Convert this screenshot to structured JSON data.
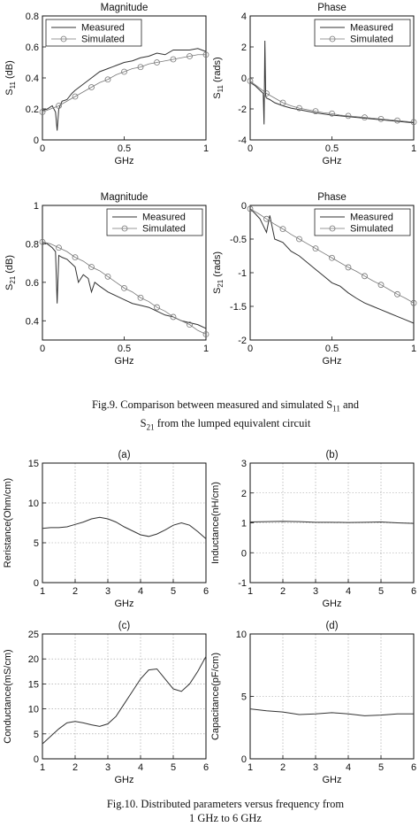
{
  "captions": {
    "fig9_line1": "Fig.9. Comparison between measured and simulated S",
    "fig9_sub1": "11",
    "fig9_mid": " and",
    "fig9_line2_pre": "S",
    "fig9_sub2": "21",
    "fig9_line2_post": " from the lumped equivalent circuit",
    "fig10_line1": "Fig.10. Distributed parameters versus frequency from",
    "fig10_line2": "1 GHz to 6 GHz"
  },
  "colors": {
    "line": "#333333",
    "grid": "#9a9a9a",
    "simulated": "#777777"
  },
  "chart_data": [
    {
      "id": "s11-magnitude",
      "type": "line",
      "title": "Magnitude",
      "xlabel": "GHz",
      "ylabel": "S11 (dB)",
      "ylabel_main": "S",
      "ylabel_sub": "11",
      "ylabel_unit": " (dB)",
      "xlim": [
        0,
        1
      ],
      "ylim": [
        0,
        0.8
      ],
      "xticks": [
        0,
        0.5,
        1
      ],
      "yticks": [
        0,
        0.2,
        0.4,
        0.6,
        0.8
      ],
      "xticklabels": [
        "0",
        "0.5",
        "1"
      ],
      "yticklabels": [
        "0",
        "0.2",
        "0.4",
        "0.6",
        "0.8"
      ],
      "legend": [
        "Measured",
        "Simulated"
      ],
      "legend_position": "top-left",
      "grid": false,
      "series": [
        {
          "name": "Measured",
          "style": "solid",
          "x": [
            0,
            0.03,
            0.06,
            0.08,
            0.09,
            0.1,
            0.12,
            0.15,
            0.18,
            0.2,
            0.25,
            0.3,
            0.35,
            0.4,
            0.45,
            0.5,
            0.55,
            0.6,
            0.65,
            0.7,
            0.75,
            0.8,
            0.85,
            0.9,
            0.95,
            1.0
          ],
          "y": [
            0.19,
            0.2,
            0.22,
            0.18,
            0.06,
            0.2,
            0.25,
            0.26,
            0.3,
            0.32,
            0.36,
            0.4,
            0.44,
            0.46,
            0.48,
            0.5,
            0.51,
            0.53,
            0.54,
            0.56,
            0.55,
            0.58,
            0.58,
            0.58,
            0.59,
            0.57
          ]
        },
        {
          "name": "Simulated",
          "style": "circles",
          "x": [
            0,
            0.05,
            0.1,
            0.15,
            0.2,
            0.25,
            0.3,
            0.35,
            0.4,
            0.45,
            0.5,
            0.55,
            0.6,
            0.65,
            0.7,
            0.75,
            0.8,
            0.85,
            0.9,
            0.95,
            1.0
          ],
          "y": [
            0.18,
            0.2,
            0.22,
            0.25,
            0.28,
            0.31,
            0.34,
            0.37,
            0.39,
            0.42,
            0.44,
            0.46,
            0.47,
            0.49,
            0.5,
            0.51,
            0.52,
            0.53,
            0.54,
            0.55,
            0.55
          ]
        }
      ]
    },
    {
      "id": "s11-phase",
      "type": "line",
      "title": "Phase",
      "xlabel": "GHz",
      "ylabel": "S11 (rads)",
      "ylabel_main": "S",
      "ylabel_sub": "11",
      "ylabel_unit": " (rads)",
      "xlim": [
        0,
        1
      ],
      "ylim": [
        -4,
        4
      ],
      "xticks": [
        0,
        0.5,
        1
      ],
      "yticks": [
        -4,
        -2,
        0,
        2,
        4
      ],
      "xticklabels": [
        "0",
        "0.5",
        "1"
      ],
      "yticklabels": [
        "-4",
        "-2",
        "0",
        "2",
        "4"
      ],
      "legend": [
        "Measured",
        "Simulated"
      ],
      "legend_position": "top-right",
      "grid": false,
      "series": [
        {
          "name": "Measured",
          "style": "solid",
          "x": [
            0,
            0.03,
            0.06,
            0.08,
            0.085,
            0.09,
            0.095,
            0.1,
            0.12,
            0.15,
            0.2,
            0.25,
            0.3,
            0.35,
            0.4,
            0.5,
            0.6,
            0.7,
            0.8,
            0.9,
            1.0
          ],
          "y": [
            -0.3,
            -0.5,
            -0.8,
            -1.0,
            -3.0,
            2.4,
            -1.2,
            -1.3,
            -1.4,
            -1.6,
            -1.8,
            -1.95,
            -2.05,
            -2.15,
            -2.25,
            -2.4,
            -2.5,
            -2.6,
            -2.7,
            -2.8,
            -2.9
          ]
        },
        {
          "name": "Simulated",
          "style": "circles",
          "x": [
            0,
            0.05,
            0.1,
            0.15,
            0.2,
            0.25,
            0.3,
            0.35,
            0.4,
            0.45,
            0.5,
            0.55,
            0.6,
            0.65,
            0.7,
            0.75,
            0.8,
            0.85,
            0.9,
            0.95,
            1.0
          ],
          "y": [
            -0.2,
            -0.6,
            -1.0,
            -1.3,
            -1.6,
            -1.8,
            -1.95,
            -2.05,
            -2.15,
            -2.25,
            -2.3,
            -2.4,
            -2.45,
            -2.5,
            -2.55,
            -2.6,
            -2.65,
            -2.7,
            -2.75,
            -2.8,
            -2.85
          ]
        }
      ]
    },
    {
      "id": "s21-magnitude",
      "type": "line",
      "title": "Magnitude",
      "xlabel": "GHz",
      "ylabel": "S21 (dB)",
      "ylabel_main": "S",
      "ylabel_sub": "21",
      "ylabel_unit": " (dB)",
      "xlim": [
        0,
        1
      ],
      "ylim": [
        0.3,
        1
      ],
      "xticks": [
        0,
        0.5,
        1
      ],
      "yticks": [
        0.4,
        0.6,
        0.8,
        1
      ],
      "xticklabels": [
        "0",
        "0.5",
        "1"
      ],
      "yticklabels": [
        "0.4",
        "0.6",
        "0.8",
        "1"
      ],
      "legend": [
        "Measured",
        "Simulated"
      ],
      "legend_position": "top-right",
      "grid": false,
      "series": [
        {
          "name": "Measured",
          "style": "solid",
          "x": [
            0,
            0.03,
            0.06,
            0.08,
            0.09,
            0.1,
            0.12,
            0.15,
            0.2,
            0.22,
            0.25,
            0.28,
            0.3,
            0.32,
            0.35,
            0.4,
            0.45,
            0.5,
            0.55,
            0.6,
            0.65,
            0.7,
            0.75,
            0.8,
            0.85,
            0.9,
            0.95,
            1.0
          ],
          "y": [
            0.81,
            0.8,
            0.78,
            0.76,
            0.49,
            0.74,
            0.73,
            0.72,
            0.68,
            0.6,
            0.64,
            0.62,
            0.55,
            0.6,
            0.58,
            0.55,
            0.53,
            0.51,
            0.49,
            0.48,
            0.47,
            0.45,
            0.43,
            0.42,
            0.4,
            0.39,
            0.38,
            0.36
          ]
        },
        {
          "name": "Simulated",
          "style": "circles",
          "x": [
            0,
            0.05,
            0.1,
            0.15,
            0.2,
            0.25,
            0.3,
            0.35,
            0.4,
            0.45,
            0.5,
            0.55,
            0.6,
            0.65,
            0.7,
            0.75,
            0.8,
            0.85,
            0.9,
            0.95,
            1.0
          ],
          "y": [
            0.81,
            0.8,
            0.78,
            0.76,
            0.73,
            0.71,
            0.68,
            0.66,
            0.63,
            0.6,
            0.57,
            0.55,
            0.52,
            0.5,
            0.47,
            0.45,
            0.42,
            0.4,
            0.38,
            0.35,
            0.33
          ]
        }
      ]
    },
    {
      "id": "s21-phase",
      "type": "line",
      "title": "Phase",
      "xlabel": "GHz",
      "ylabel": "S21 (rads)",
      "ylabel_main": "S",
      "ylabel_sub": "21",
      "ylabel_unit": " (rads)",
      "xlim": [
        0,
        1
      ],
      "ylim": [
        -2,
        0
      ],
      "xticks": [
        0,
        0.5,
        1
      ],
      "yticks": [
        -2,
        -1.5,
        -1,
        -0.5,
        0
      ],
      "xticklabels": [
        "0",
        "0.5",
        "1"
      ],
      "yticklabels": [
        "-2",
        "-1.5",
        "-1",
        "-0.5",
        "0"
      ],
      "legend": [
        "Measured",
        "Simulated"
      ],
      "legend_position": "top-right",
      "grid": false,
      "series": [
        {
          "name": "Measured",
          "style": "solid",
          "x": [
            0,
            0.03,
            0.06,
            0.08,
            0.1,
            0.12,
            0.15,
            0.2,
            0.25,
            0.3,
            0.35,
            0.4,
            0.45,
            0.5,
            0.55,
            0.6,
            0.65,
            0.7,
            0.75,
            0.8,
            0.85,
            0.9,
            0.95,
            1.0
          ],
          "y": [
            -0.05,
            -0.12,
            -0.2,
            -0.3,
            -0.4,
            -0.15,
            -0.5,
            -0.55,
            -0.68,
            -0.75,
            -0.85,
            -0.95,
            -1.05,
            -1.15,
            -1.2,
            -1.3,
            -1.38,
            -1.45,
            -1.5,
            -1.55,
            -1.6,
            -1.65,
            -1.7,
            -1.75
          ]
        },
        {
          "name": "Simulated",
          "style": "circles",
          "x": [
            0,
            0.05,
            0.1,
            0.15,
            0.2,
            0.25,
            0.3,
            0.35,
            0.4,
            0.45,
            0.5,
            0.55,
            0.6,
            0.65,
            0.7,
            0.75,
            0.8,
            0.85,
            0.9,
            0.95,
            1.0
          ],
          "y": [
            -0.05,
            -0.12,
            -0.2,
            -0.28,
            -0.35,
            -0.43,
            -0.5,
            -0.57,
            -0.64,
            -0.71,
            -0.78,
            -0.85,
            -0.92,
            -0.98,
            -1.05,
            -1.12,
            -1.18,
            -1.25,
            -1.32,
            -1.38,
            -1.45
          ]
        }
      ]
    },
    {
      "id": "resistance",
      "type": "line",
      "title": "(a)",
      "xlabel": "GHz",
      "ylabel": "Reristance(Ohm/cm)",
      "xlim": [
        1,
        6
      ],
      "ylim": [
        0,
        15
      ],
      "xticks": [
        1,
        2,
        3,
        4,
        5,
        6
      ],
      "yticks": [
        0,
        5,
        10,
        15
      ],
      "xticklabels": [
        "1",
        "2",
        "3",
        "4",
        "5",
        "6"
      ],
      "yticklabels": [
        "0",
        "5",
        "10",
        "15"
      ],
      "grid": true,
      "series": [
        {
          "name": "",
          "style": "solid",
          "x": [
            1,
            1.25,
            1.5,
            1.75,
            2,
            2.25,
            2.5,
            2.75,
            3,
            3.25,
            3.5,
            3.75,
            4,
            4.25,
            4.5,
            4.75,
            5,
            5.25,
            5.5,
            5.75,
            6
          ],
          "y": [
            6.8,
            6.9,
            6.9,
            7.0,
            7.3,
            7.6,
            8.0,
            8.2,
            8.0,
            7.6,
            7.0,
            6.5,
            6.0,
            5.8,
            6.1,
            6.6,
            7.2,
            7.5,
            7.2,
            6.4,
            5.5
          ]
        }
      ]
    },
    {
      "id": "inductance",
      "type": "line",
      "title": "(b)",
      "xlabel": "GHz",
      "ylabel": "Inductance(nH/cm)",
      "xlim": [
        1,
        6
      ],
      "ylim": [
        -1,
        3
      ],
      "xticks": [
        1,
        2,
        3,
        4,
        5,
        6
      ],
      "yticks": [
        -1,
        0,
        1,
        2,
        3
      ],
      "xticklabels": [
        "1",
        "2",
        "3",
        "4",
        "5",
        "6"
      ],
      "yticklabels": [
        "-1",
        "0",
        "1",
        "2",
        "3"
      ],
      "grid": true,
      "series": [
        {
          "name": "",
          "style": "solid",
          "x": [
            1,
            1.5,
            2,
            2.5,
            3,
            3.5,
            4,
            4.5,
            5,
            5.5,
            6
          ],
          "y": [
            1.03,
            1.04,
            1.05,
            1.04,
            1.02,
            1.02,
            1.01,
            1.02,
            1.03,
            1.0,
            0.98
          ]
        }
      ]
    },
    {
      "id": "conductance",
      "type": "line",
      "title": "(c)",
      "xlabel": "GHz",
      "ylabel": "Conductance(mS/cm)",
      "xlim": [
        1,
        6
      ],
      "ylim": [
        0,
        25
      ],
      "xticks": [
        1,
        2,
        3,
        4,
        5,
        6
      ],
      "yticks": [
        0,
        5,
        10,
        15,
        20,
        25
      ],
      "xticklabels": [
        "1",
        "2",
        "3",
        "4",
        "5",
        "6"
      ],
      "yticklabels": [
        "0",
        "5",
        "10",
        "15",
        "20",
        "25"
      ],
      "grid": true,
      "series": [
        {
          "name": "",
          "style": "solid",
          "x": [
            1,
            1.25,
            1.5,
            1.75,
            2,
            2.25,
            2.5,
            2.75,
            3,
            3.25,
            3.5,
            3.75,
            4,
            4.25,
            4.5,
            4.75,
            5,
            5.25,
            5.5,
            5.75,
            6
          ],
          "y": [
            3.0,
            4.5,
            6.0,
            7.2,
            7.5,
            7.2,
            6.8,
            6.5,
            7.0,
            8.5,
            11.0,
            13.5,
            16.0,
            17.8,
            18.0,
            16.0,
            14.0,
            13.5,
            15.0,
            17.5,
            20.5
          ]
        }
      ]
    },
    {
      "id": "capacitance",
      "type": "line",
      "title": "(d)",
      "xlabel": "GHz",
      "ylabel": "Capacitance(pF/cm)",
      "xlim": [
        1,
        6
      ],
      "ylim": [
        0,
        10
      ],
      "xticks": [
        1,
        2,
        3,
        4,
        5,
        6
      ],
      "yticks": [
        0,
        5,
        10
      ],
      "xticklabels": [
        "1",
        "2",
        "3",
        "4",
        "5",
        "6"
      ],
      "yticklabels": [
        "0",
        "5",
        "10"
      ],
      "grid": true,
      "series": [
        {
          "name": "",
          "style": "solid",
          "x": [
            1,
            1.5,
            2,
            2.5,
            3,
            3.5,
            4,
            4.5,
            5,
            5.5,
            6
          ],
          "y": [
            4.0,
            3.85,
            3.75,
            3.55,
            3.6,
            3.7,
            3.6,
            3.45,
            3.5,
            3.6,
            3.6
          ]
        }
      ]
    }
  ]
}
